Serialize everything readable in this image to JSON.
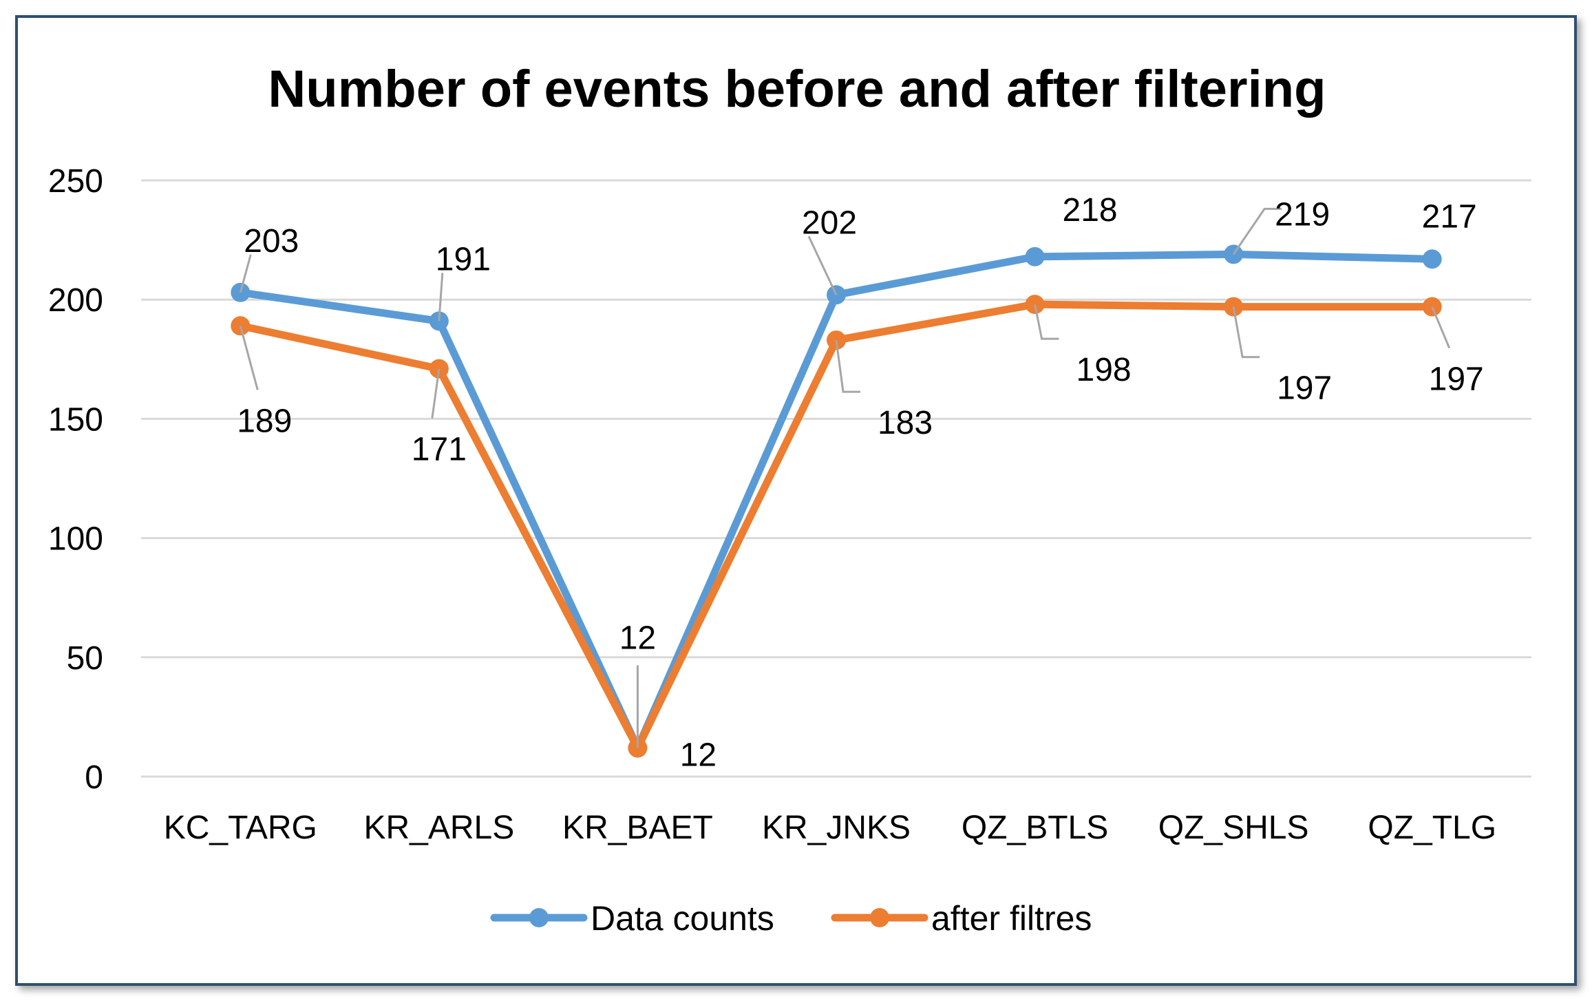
{
  "chart_data": {
    "type": "line",
    "title": "Number of events before and after filtering",
    "xlabel": "",
    "ylabel": "",
    "categories": [
      "KC_TARG",
      "KR_ARLS",
      "KR_BAET",
      "KR_JNKS",
      "QZ_BTLS",
      "QZ_SHLS",
      "QZ_TLG"
    ],
    "ylim": [
      0,
      250
    ],
    "yticks": [
      0,
      50,
      100,
      150,
      200,
      250
    ],
    "grid": true,
    "legend_position": "bottom",
    "series": [
      {
        "name": "Data counts",
        "color": "#5b9bd5",
        "values": [
          203,
          191,
          12,
          202,
          218,
          219,
          217
        ]
      },
      {
        "name": "after filtres",
        "color": "#ed7d31",
        "values": [
          189,
          171,
          12,
          183,
          198,
          197,
          197
        ]
      }
    ]
  }
}
